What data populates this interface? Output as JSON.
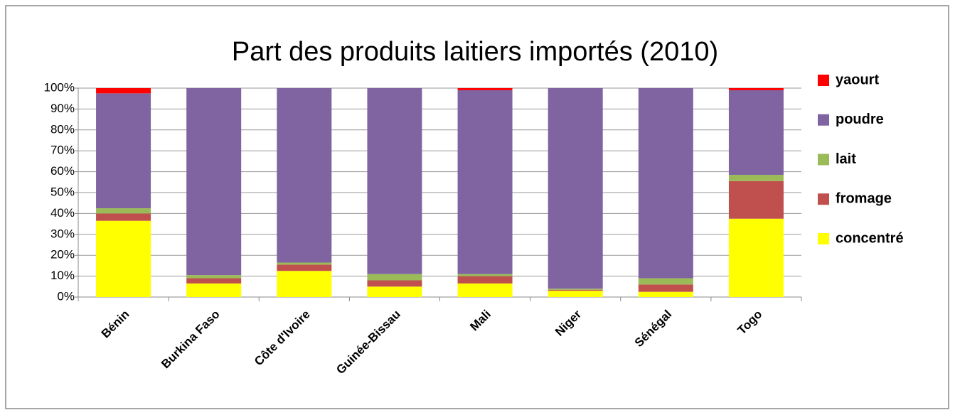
{
  "chart_data": {
    "type": "stacked_bar_100",
    "title": "Part des produits laitiers importés (2010)",
    "categories": [
      "Bénin",
      "Burkina Faso",
      "Côte d'Ivoire",
      "Guinée-Bissau",
      "Mali",
      "Niger",
      "Sénégal",
      "Togo"
    ],
    "series": [
      {
        "name": "concentré",
        "color": "#ffff00",
        "values": [
          36.5,
          6.5,
          12.5,
          5,
          6.5,
          3,
          2.5,
          37.5
        ]
      },
      {
        "name": "fromage",
        "color": "#c0504d",
        "values": [
          3.5,
          2.5,
          3,
          3,
          3.5,
          0.5,
          3.5,
          18
        ]
      },
      {
        "name": "lait",
        "color": "#9bbb59",
        "values": [
          2.5,
          1.5,
          1,
          3,
          1,
          0.5,
          3,
          3
        ]
      },
      {
        "name": "poudre",
        "color": "#8064a2",
        "values": [
          55,
          89.5,
          83.5,
          89,
          88,
          96,
          91,
          40.5
        ]
      },
      {
        "name": "yaourt",
        "color": "#ff0000",
        "values": [
          2.5,
          0,
          0,
          0,
          1,
          0,
          0,
          1
        ]
      }
    ],
    "ylim": [
      0,
      100
    ],
    "yticks": [
      {
        "value": 0,
        "label": "0%"
      },
      {
        "value": 10,
        "label": "10%"
      },
      {
        "value": 20,
        "label": "20%"
      },
      {
        "value": 30,
        "label": "30%"
      },
      {
        "value": 40,
        "label": "40%"
      },
      {
        "value": 50,
        "label": "50%"
      },
      {
        "value": 60,
        "label": "60%"
      },
      {
        "value": 70,
        "label": "70%"
      },
      {
        "value": 80,
        "label": "80%"
      },
      {
        "value": 90,
        "label": "90%"
      },
      {
        "value": 100,
        "label": "100%"
      }
    ],
    "grid": true,
    "legend": "right"
  }
}
